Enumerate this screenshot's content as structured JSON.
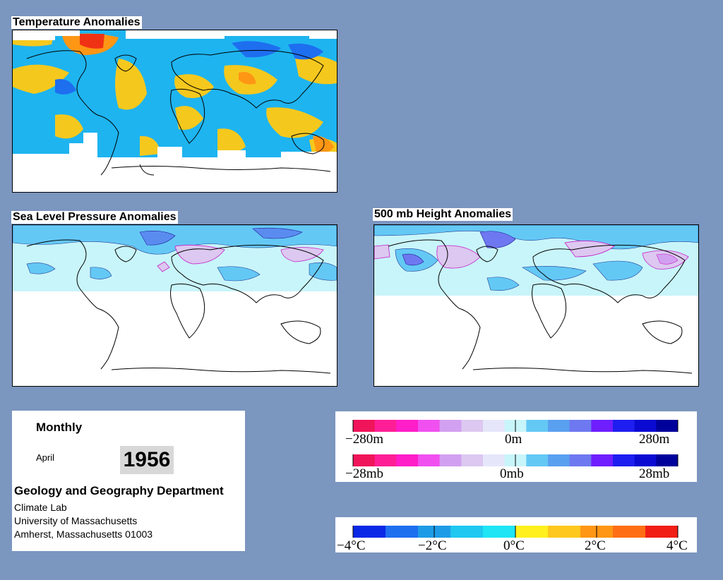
{
  "maps": {
    "temperature": {
      "title": "Temperature Anomalies"
    },
    "pressure": {
      "title": "Sea Level Pressure Anomalies"
    },
    "height": {
      "title": "500 mb Height Anomalies"
    }
  },
  "info": {
    "period": "Monthly",
    "month": "April",
    "year": "1956",
    "department": "Geology and Geography Department",
    "lab": "Climate Lab",
    "university": "University of Massachusetts",
    "address": "Amherst, Massachusetts 01003"
  },
  "legend_height": {
    "colors": [
      "#f0145a",
      "#ff1e96",
      "#ff1ec8",
      "#f050f0",
      "#d2a0f0",
      "#dcc8f0",
      "#e6e6fa",
      "#c8f5fa",
      "#64c8f5",
      "#5aa0f0",
      "#6e78f0",
      "#6e1eff",
      "#1e1ef0",
      "#0a0ad2",
      "#00009b"
    ],
    "labels": [
      "−280m",
      "0m",
      "280m"
    ]
  },
  "legend_pressure": {
    "labels": [
      "−28mb",
      "0mb",
      "28mb"
    ]
  },
  "legend_temp": {
    "colors": [
      "#0a28e6",
      "#1e6ef0",
      "#1e9be6",
      "#1ec8f0",
      "#1ee6f5",
      "#fff01e",
      "#ffc81e",
      "#ff9614",
      "#ff6e14",
      "#f01e14"
    ],
    "labels": [
      "−4°C",
      "−2°C",
      "0°C",
      "2°C",
      "4°C"
    ]
  }
}
